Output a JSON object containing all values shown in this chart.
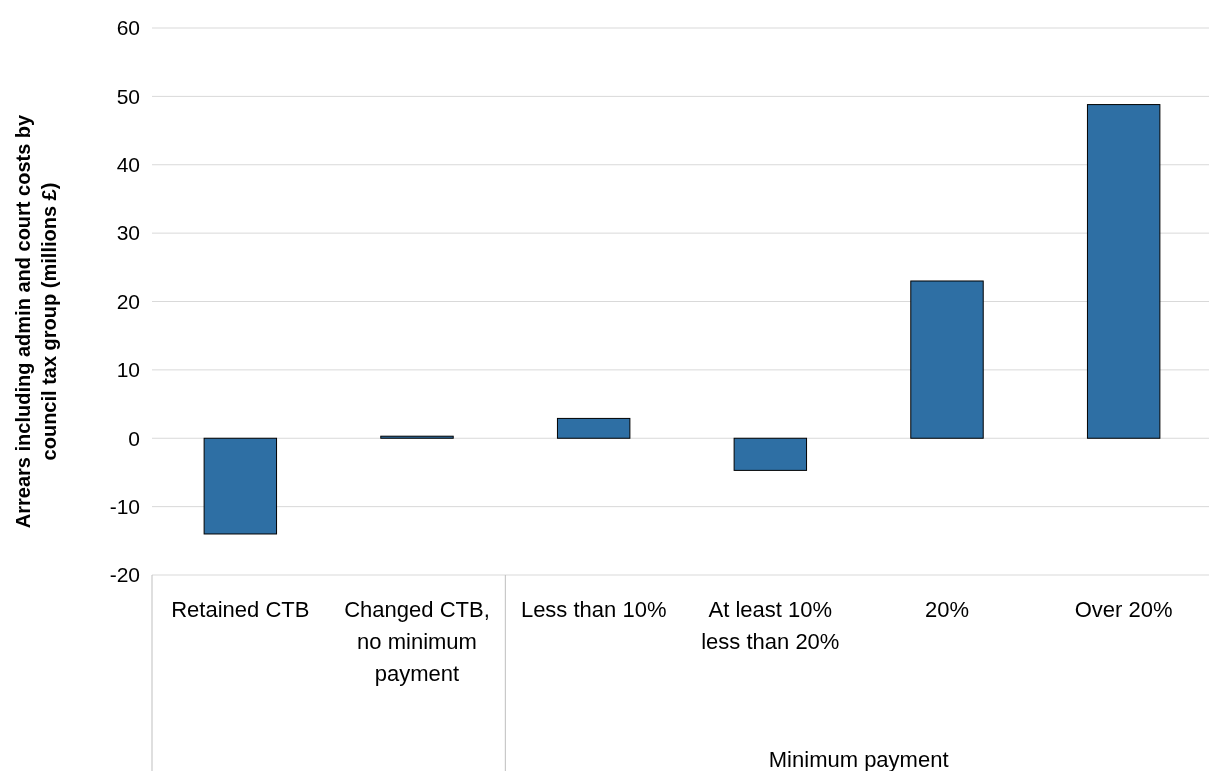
{
  "chart_data": {
    "type": "bar",
    "ylabel": "Arrears including admin  and court costs by council tax group (millions £)",
    "categories": [
      "Retained CTB",
      "Changed CTB, no minimum payment",
      "Less than 10%",
      "At least 10% less than 20%",
      "20%",
      "Over 20%"
    ],
    "values": [
      -14,
      0.3,
      2.9,
      -4.7,
      23,
      48.8
    ],
    "color": "#2e6fa4",
    "ylim": [
      -20,
      60
    ],
    "yticks": [
      -20,
      -10,
      0,
      10,
      20,
      30,
      40,
      50,
      60
    ],
    "grid": "y",
    "annotations": [
      "Minimum payment"
    ]
  }
}
